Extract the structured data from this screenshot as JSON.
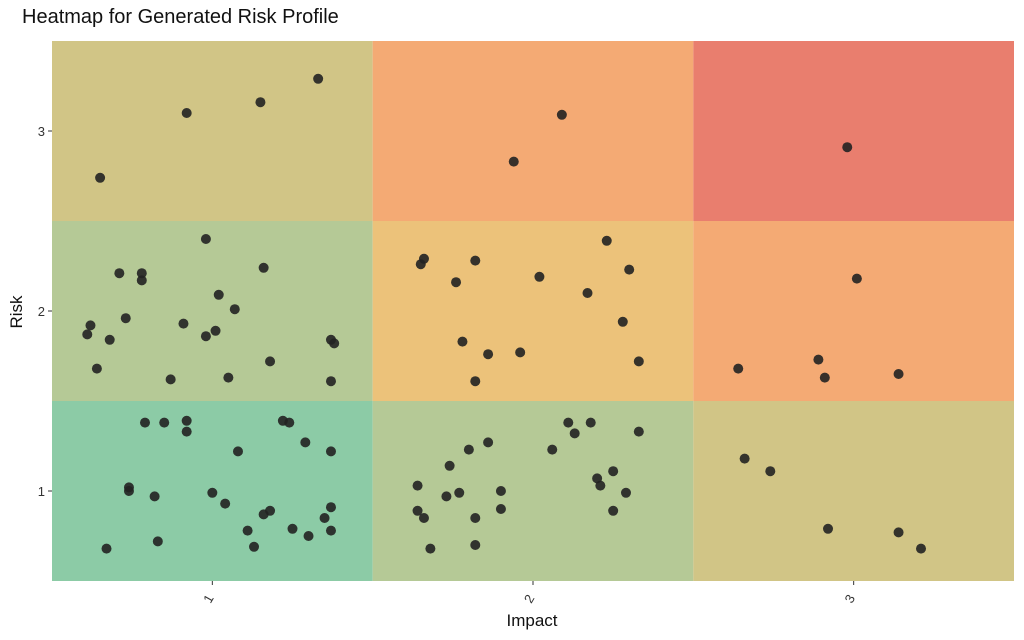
{
  "chart_data": {
    "type": "heatmap",
    "title": "Heatmap for Generated Risk Profile",
    "xlabel": "Impact",
    "ylabel": "Risk",
    "x_categories": [
      "1",
      "2",
      "3"
    ],
    "y_categories": [
      "1",
      "2",
      "3"
    ],
    "grid": false,
    "cells": [
      {
        "impact": 1,
        "risk": 1,
        "color": "#8ccba6"
      },
      {
        "impact": 2,
        "risk": 1,
        "color": "#b5c996"
      },
      {
        "impact": 3,
        "risk": 1,
        "color": "#d1c586"
      },
      {
        "impact": 1,
        "risk": 2,
        "color": "#b5c996"
      },
      {
        "impact": 2,
        "risk": 2,
        "color": "#ecc27a"
      },
      {
        "impact": 3,
        "risk": 2,
        "color": "#f4aa74"
      },
      {
        "impact": 1,
        "risk": 3,
        "color": "#d1c586"
      },
      {
        "impact": 2,
        "risk": 3,
        "color": "#f4aa74"
      },
      {
        "impact": 3,
        "risk": 3,
        "color": "#e97e6e"
      }
    ],
    "point_color": "#222222",
    "points": [
      {
        "x": 0.67,
        "y": 0.68
      },
      {
        "x": 0.74,
        "y": 1.02
      },
      {
        "x": 0.74,
        "y": 1.0
      },
      {
        "x": 0.79,
        "y": 1.38
      },
      {
        "x": 0.82,
        "y": 0.97
      },
      {
        "x": 0.83,
        "y": 0.72
      },
      {
        "x": 0.85,
        "y": 1.38
      },
      {
        "x": 0.92,
        "y": 1.39
      },
      {
        "x": 0.92,
        "y": 1.33
      },
      {
        "x": 1.0,
        "y": 0.99
      },
      {
        "x": 1.04,
        "y": 0.93
      },
      {
        "x": 1.08,
        "y": 1.22
      },
      {
        "x": 1.11,
        "y": 0.78
      },
      {
        "x": 1.13,
        "y": 0.69
      },
      {
        "x": 1.16,
        "y": 0.87
      },
      {
        "x": 1.18,
        "y": 0.89
      },
      {
        "x": 1.22,
        "y": 1.39
      },
      {
        "x": 1.24,
        "y": 1.38
      },
      {
        "x": 1.25,
        "y": 0.79
      },
      {
        "x": 1.29,
        "y": 1.27
      },
      {
        "x": 1.3,
        "y": 0.75
      },
      {
        "x": 1.35,
        "y": 0.85
      },
      {
        "x": 1.37,
        "y": 1.22
      },
      {
        "x": 1.37,
        "y": 0.91
      },
      {
        "x": 1.37,
        "y": 0.78
      },
      {
        "x": 0.61,
        "y": 1.87
      },
      {
        "x": 0.62,
        "y": 1.92
      },
      {
        "x": 0.64,
        "y": 1.68
      },
      {
        "x": 0.68,
        "y": 1.84
      },
      {
        "x": 0.71,
        "y": 2.21
      },
      {
        "x": 0.73,
        "y": 1.96
      },
      {
        "x": 0.78,
        "y": 2.21
      },
      {
        "x": 0.78,
        "y": 2.17
      },
      {
        "x": 0.87,
        "y": 1.62
      },
      {
        "x": 0.91,
        "y": 1.93
      },
      {
        "x": 0.98,
        "y": 2.4
      },
      {
        "x": 0.98,
        "y": 1.86
      },
      {
        "x": 1.01,
        "y": 1.89
      },
      {
        "x": 1.02,
        "y": 2.09
      },
      {
        "x": 1.05,
        "y": 1.63
      },
      {
        "x": 1.07,
        "y": 2.01
      },
      {
        "x": 1.16,
        "y": 2.24
      },
      {
        "x": 1.18,
        "y": 1.72
      },
      {
        "x": 1.37,
        "y": 1.84
      },
      {
        "x": 1.38,
        "y": 1.82
      },
      {
        "x": 1.37,
        "y": 1.61
      },
      {
        "x": 0.65,
        "y": 2.74
      },
      {
        "x": 0.92,
        "y": 3.1
      },
      {
        "x": 1.15,
        "y": 3.16
      },
      {
        "x": 1.33,
        "y": 3.29
      },
      {
        "x": 1.64,
        "y": 0.89
      },
      {
        "x": 1.64,
        "y": 1.03
      },
      {
        "x": 1.66,
        "y": 0.85
      },
      {
        "x": 1.68,
        "y": 0.68
      },
      {
        "x": 1.73,
        "y": 0.97
      },
      {
        "x": 1.74,
        "y": 1.14
      },
      {
        "x": 1.77,
        "y": 0.99
      },
      {
        "x": 1.8,
        "y": 1.23
      },
      {
        "x": 1.82,
        "y": 0.85
      },
      {
        "x": 1.82,
        "y": 0.7
      },
      {
        "x": 1.86,
        "y": 1.27
      },
      {
        "x": 1.9,
        "y": 1.0
      },
      {
        "x": 1.9,
        "y": 0.9
      },
      {
        "x": 2.06,
        "y": 1.23
      },
      {
        "x": 2.11,
        "y": 1.38
      },
      {
        "x": 2.13,
        "y": 1.32
      },
      {
        "x": 2.18,
        "y": 1.38
      },
      {
        "x": 2.2,
        "y": 1.07
      },
      {
        "x": 2.21,
        "y": 1.03
      },
      {
        "x": 2.25,
        "y": 1.11
      },
      {
        "x": 2.25,
        "y": 0.89
      },
      {
        "x": 2.29,
        "y": 0.99
      },
      {
        "x": 2.33,
        "y": 1.33
      },
      {
        "x": 1.65,
        "y": 2.26
      },
      {
        "x": 1.66,
        "y": 2.29
      },
      {
        "x": 1.76,
        "y": 2.16
      },
      {
        "x": 1.78,
        "y": 1.83
      },
      {
        "x": 1.82,
        "y": 2.28
      },
      {
        "x": 1.82,
        "y": 1.61
      },
      {
        "x": 1.86,
        "y": 1.76
      },
      {
        "x": 1.96,
        "y": 1.77
      },
      {
        "x": 2.02,
        "y": 2.19
      },
      {
        "x": 2.17,
        "y": 2.1
      },
      {
        "x": 2.23,
        "y": 2.39
      },
      {
        "x": 2.28,
        "y": 1.94
      },
      {
        "x": 2.3,
        "y": 2.23
      },
      {
        "x": 2.33,
        "y": 1.72
      },
      {
        "x": 1.94,
        "y": 2.83
      },
      {
        "x": 2.09,
        "y": 3.09
      },
      {
        "x": 2.66,
        "y": 1.18
      },
      {
        "x": 2.74,
        "y": 1.11
      },
      {
        "x": 2.92,
        "y": 0.79
      },
      {
        "x": 3.14,
        "y": 0.77
      },
      {
        "x": 3.21,
        "y": 0.68
      },
      {
        "x": 2.64,
        "y": 1.68
      },
      {
        "x": 2.89,
        "y": 1.73
      },
      {
        "x": 2.91,
        "y": 1.63
      },
      {
        "x": 3.01,
        "y": 2.18
      },
      {
        "x": 3.14,
        "y": 1.65
      },
      {
        "x": 2.98,
        "y": 2.91
      }
    ]
  }
}
